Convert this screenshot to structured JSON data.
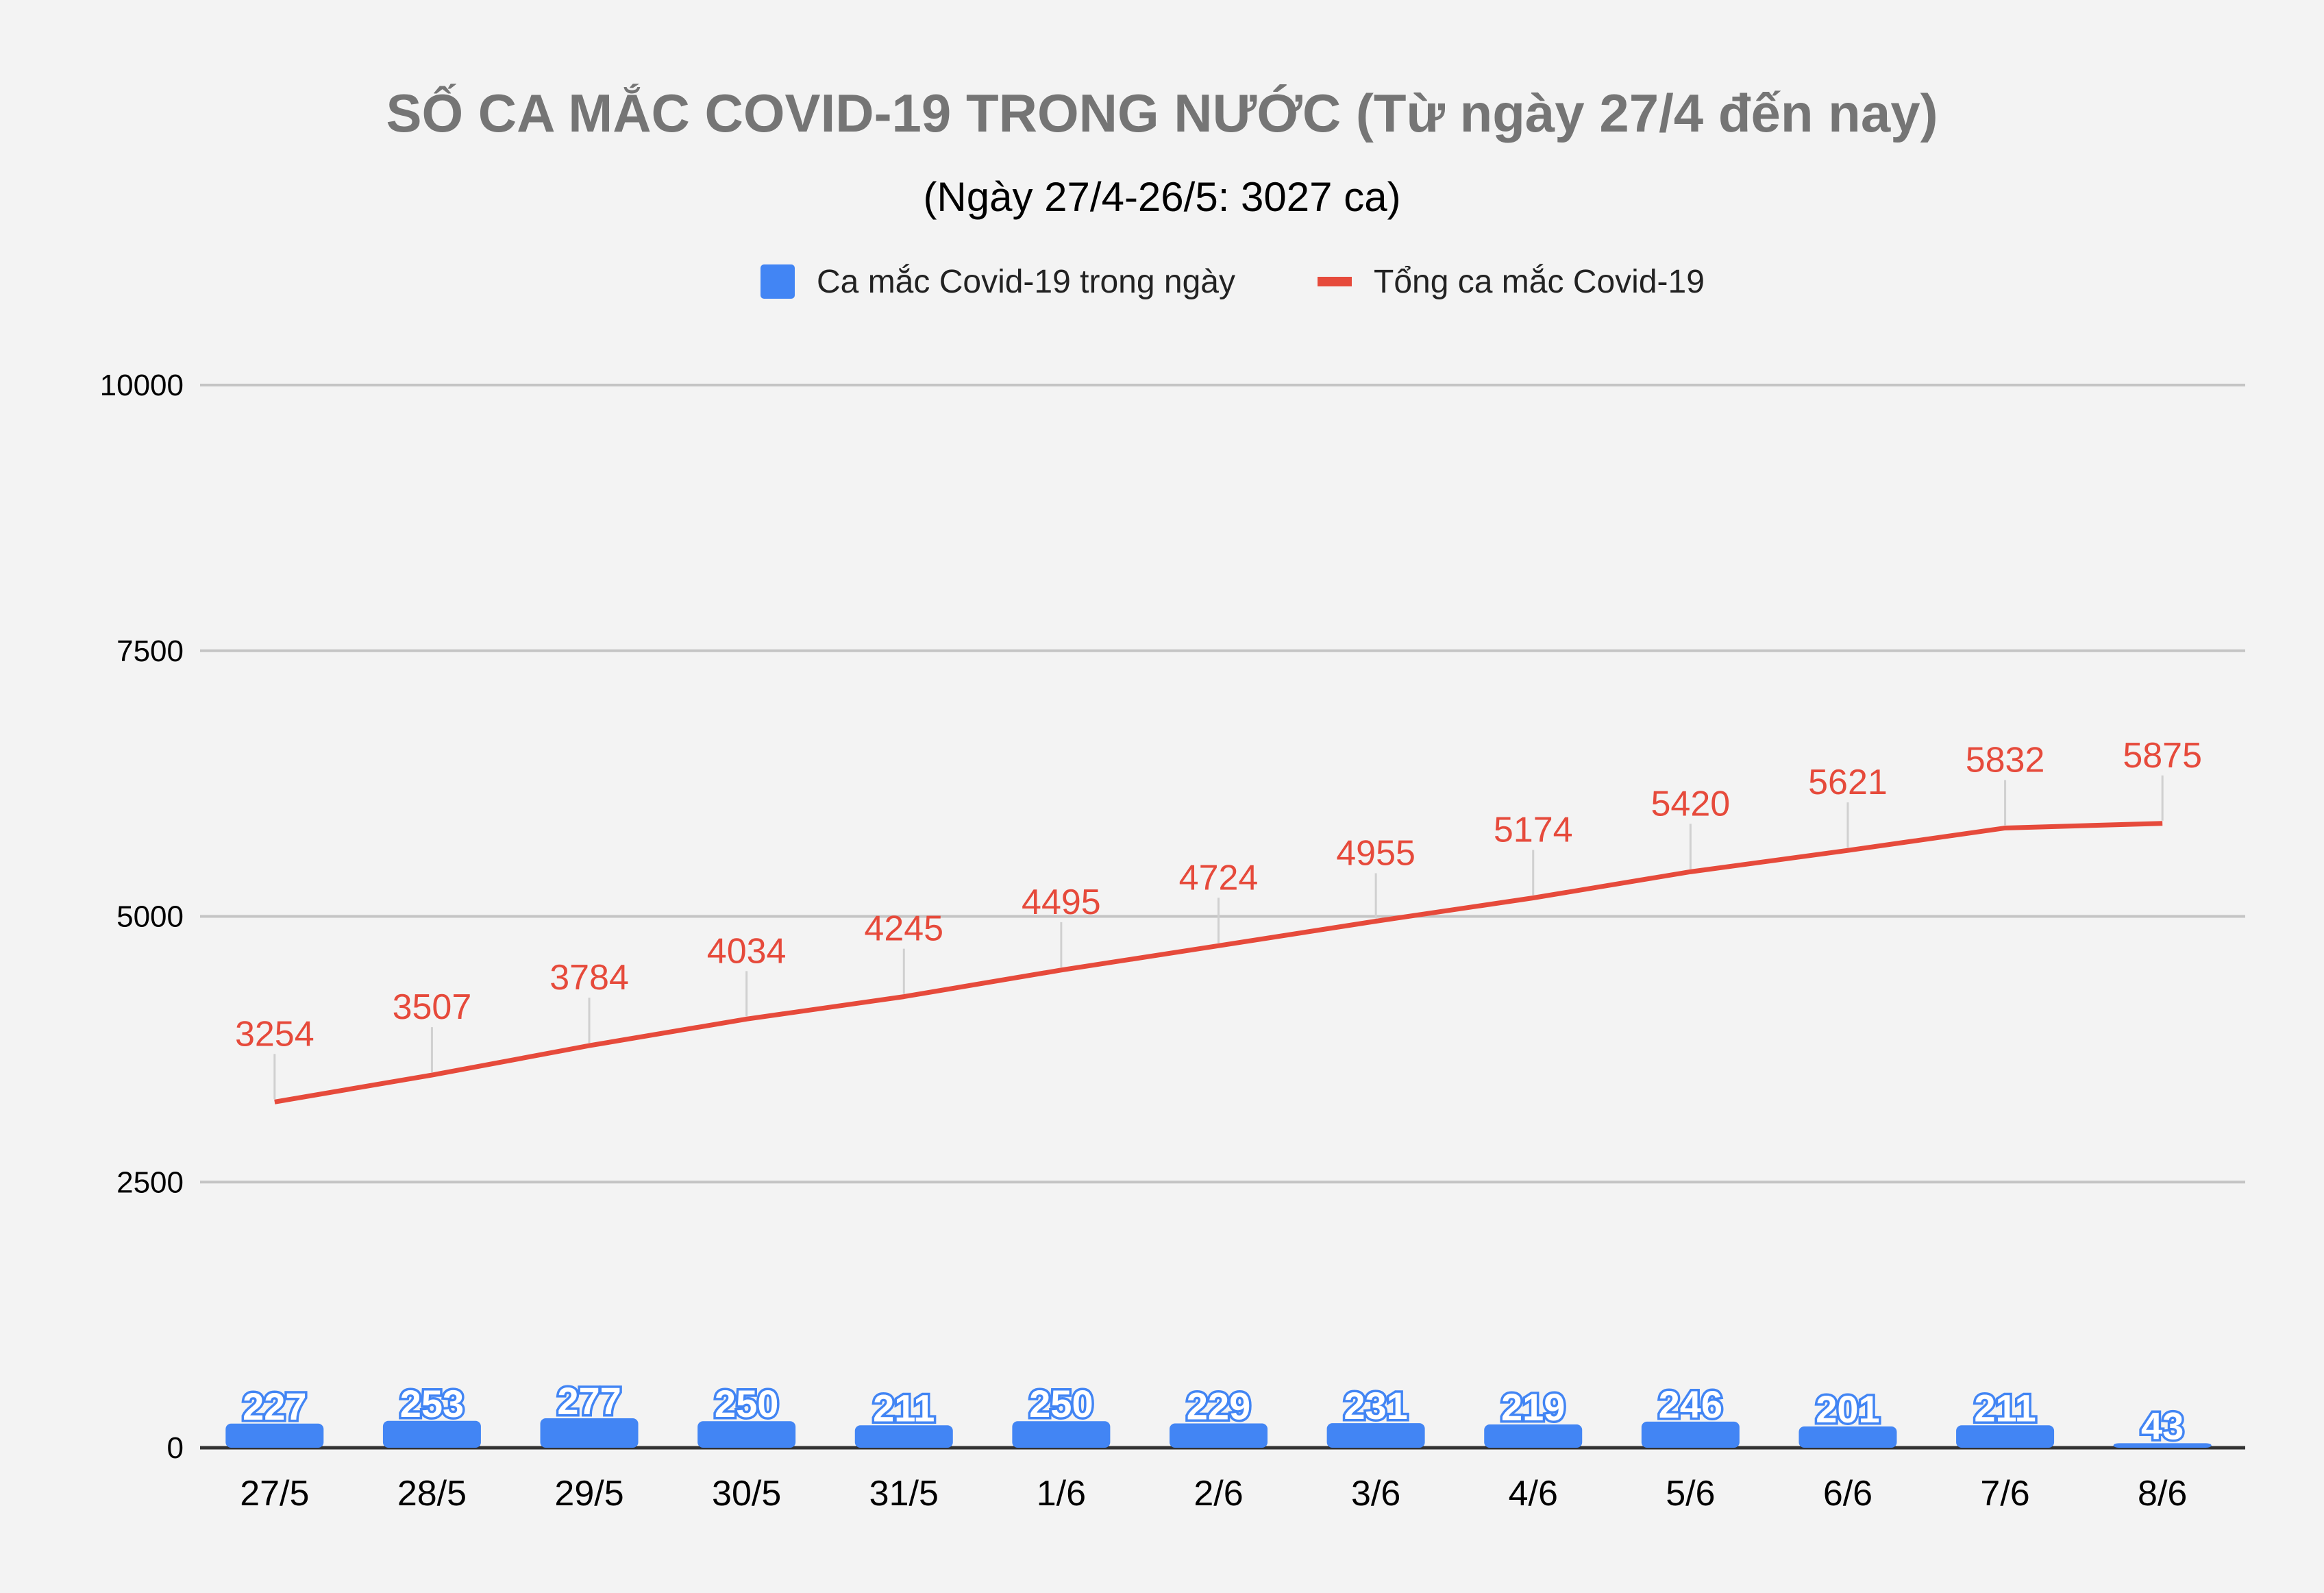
{
  "chart_data": {
    "type": "bar+line",
    "title": "SỐ CA MẮC COVID-19 TRONG NƯỚC (Từ ngày 27/4 đến nay)",
    "subtitle": "(Ngày 27/4-26/5: 3027 ca)",
    "categories": [
      "27/5",
      "28/5",
      "29/5",
      "30/5",
      "31/5",
      "1/6",
      "2/6",
      "3/6",
      "4/6",
      "5/6",
      "6/6",
      "7/6",
      "8/6"
    ],
    "series": [
      {
        "name": "Ca mắc Covid-19 trong ngày",
        "type": "bar",
        "color": "#4285f4",
        "values": [
          227,
          253,
          277,
          250,
          211,
          250,
          229,
          231,
          219,
          246,
          201,
          211,
          43
        ]
      },
      {
        "name": "Tổng ca mắc Covid-19",
        "type": "line",
        "color": "#e64a3b",
        "values": [
          3254,
          3507,
          3784,
          4034,
          4245,
          4495,
          4724,
          4955,
          5174,
          5420,
          5621,
          5832,
          5875
        ]
      }
    ],
    "ylim": [
      0,
      10000
    ],
    "yticks": [
      "0",
      "2500",
      "5000",
      "7500",
      "10000"
    ],
    "grid": true,
    "legend": "top"
  }
}
